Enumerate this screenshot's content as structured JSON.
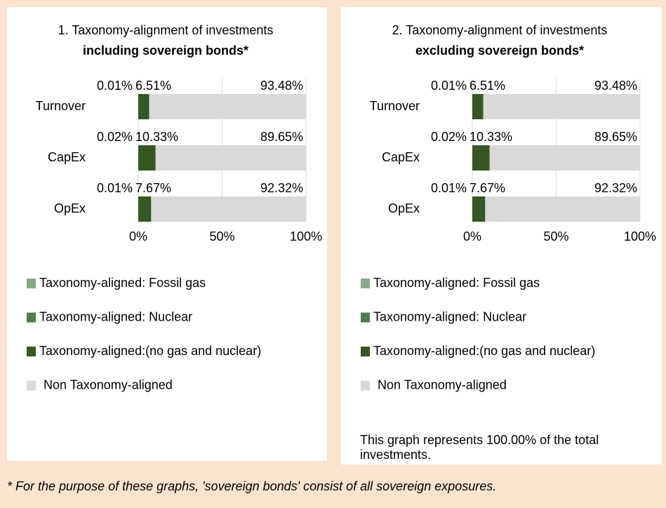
{
  "chart_data": [
    {
      "type": "bar",
      "orientation": "horizontal",
      "stacked": true,
      "title": "1. Taxonomy-alignment of investments",
      "subtitle": "including sovereign bonds*",
      "categories": [
        "Turnover",
        "CapEx",
        "OpEx"
      ],
      "series": [
        {
          "name": "Taxonomy-aligned: Fossil gas",
          "color": "#8aa78a",
          "values": [
            0.01,
            0.02,
            0.01
          ],
          "value_labels": [
            "0.01%",
            "0.02%",
            "0.01%"
          ]
        },
        {
          "name": "Taxonomy-aligned: Nuclear",
          "color": "#4e7d4e",
          "values": [
            0,
            0,
            0
          ]
        },
        {
          "name": "Taxonomy-aligned:(no gas and nuclear)",
          "color": "#375623",
          "values": [
            6.51,
            10.33,
            7.67
          ],
          "value_labels": [
            "6.51%",
            "10.33%",
            "7.67%"
          ]
        },
        {
          "name": "Non Taxonomy-aligned",
          "color": "#d9d9d9",
          "values": [
            93.48,
            89.65,
            92.32
          ],
          "value_labels": [
            "93.48%",
            "89.65%",
            "92.32%"
          ]
        }
      ],
      "xlim": [
        0,
        100
      ],
      "xticks": [
        {
          "value": 0,
          "label": "0%"
        },
        {
          "value": 50,
          "label": "50%"
        },
        {
          "value": 100,
          "label": "100%"
        }
      ],
      "grid": true
    },
    {
      "type": "bar",
      "orientation": "horizontal",
      "stacked": true,
      "title": "2. Taxonomy-alignment of investments",
      "subtitle": "excluding sovereign bonds*",
      "categories": [
        "Turnover",
        "CapEx",
        "OpEx"
      ],
      "series": [
        {
          "name": "Taxonomy-aligned: Fossil gas",
          "color": "#8aa78a",
          "values": [
            0.01,
            0.02,
            0.01
          ],
          "value_labels": [
            "0.01%",
            "0.02%",
            "0.01%"
          ]
        },
        {
          "name": "Taxonomy-aligned: Nuclear",
          "color": "#4e7d4e",
          "values": [
            0,
            0,
            0
          ]
        },
        {
          "name": "Taxonomy-aligned:(no gas and nuclear)",
          "color": "#375623",
          "values": [
            6.51,
            10.33,
            7.67
          ],
          "value_labels": [
            "6.51%",
            "10.33%",
            "7.67%"
          ]
        },
        {
          "name": "Non Taxonomy-aligned",
          "color": "#d9d9d9",
          "values": [
            93.48,
            89.65,
            92.32
          ],
          "value_labels": [
            "93.48%",
            "89.65%",
            "92.32%"
          ]
        }
      ],
      "xlim": [
        0,
        100
      ],
      "xticks": [
        {
          "value": 0,
          "label": "0%"
        },
        {
          "value": 50,
          "label": "50%"
        },
        {
          "value": 100,
          "label": "100%"
        }
      ],
      "grid": true,
      "note": "This graph represents 100.00% of the total investments."
    }
  ],
  "footnote": "* For the purpose of these graphs, 'sovereign bonds' consist of all sovereign exposures."
}
